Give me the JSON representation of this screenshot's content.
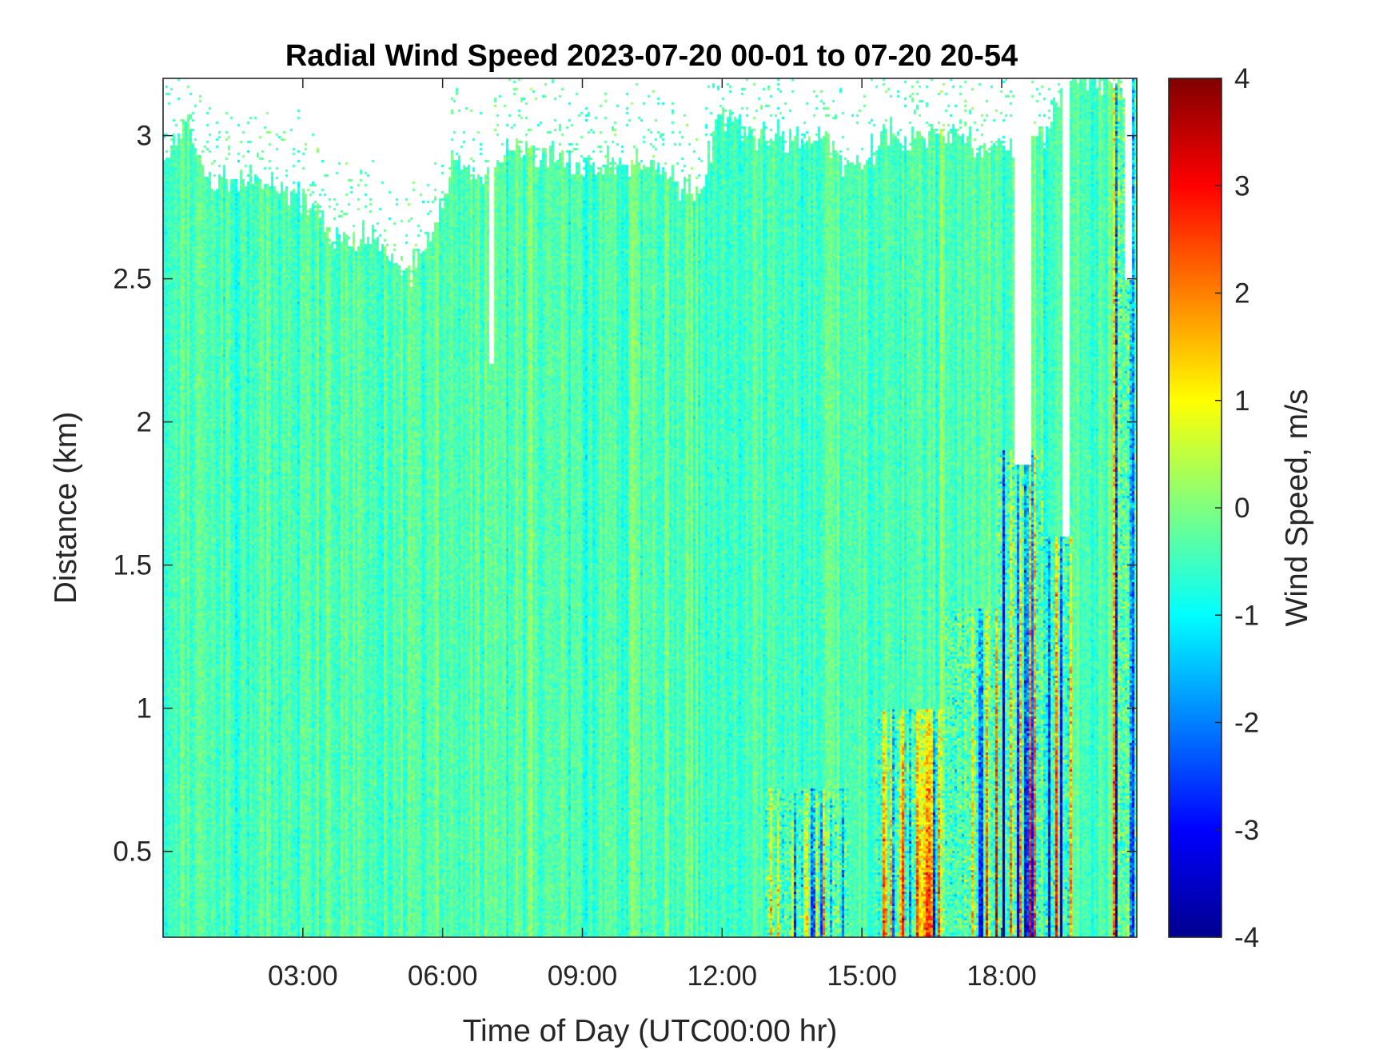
{
  "chart_data": {
    "type": "heatmap",
    "title": "Radial Wind Speed 2023-07-20 00-01 to 07-20 20-54",
    "xlabel": "Time of Day (UTC00:00 hr)",
    "ylabel": "Distance (km)",
    "xlim": [
      0.0,
      20.9
    ],
    "ylim": [
      0.2,
      3.2
    ],
    "x_ticks": [
      3,
      6,
      9,
      12,
      15,
      18
    ],
    "x_tick_labels": [
      "03:00",
      "06:00",
      "09:00",
      "12:00",
      "15:00",
      "18:00"
    ],
    "y_ticks": [
      0.5,
      1,
      1.5,
      2,
      2.5,
      3
    ],
    "y_tick_labels": [
      "0.5",
      "1",
      "1.5",
      "2",
      "2.5",
      "3"
    ],
    "colorbar": {
      "label": "Wind Speed, m/s",
      "colormap": "jet",
      "clim": [
        -4,
        4
      ],
      "ticks": [
        -4,
        -3,
        -2,
        -1,
        0,
        1,
        2,
        3,
        4
      ],
      "tick_labels": [
        "-4",
        "-3",
        "-2",
        "-1",
        "0",
        "1",
        "2",
        "3",
        "4"
      ]
    },
    "grid": false,
    "background_trend_m_s": -0.4,
    "data_ceiling_km": [
      {
        "x": 0.0,
        "y": 2.9
      },
      {
        "x": 0.5,
        "y": 3.05
      },
      {
        "x": 1.0,
        "y": 2.85
      },
      {
        "x": 2.0,
        "y": 2.85
      },
      {
        "x": 3.0,
        "y": 2.8
      },
      {
        "x": 3.6,
        "y": 2.65
      },
      {
        "x": 4.5,
        "y": 2.65
      },
      {
        "x": 5.3,
        "y": 2.5
      },
      {
        "x": 5.8,
        "y": 2.65
      },
      {
        "x": 6.2,
        "y": 2.9
      },
      {
        "x": 6.8,
        "y": 2.85
      },
      {
        "x": 7.5,
        "y": 2.95
      },
      {
        "x": 9.0,
        "y": 2.9
      },
      {
        "x": 10.5,
        "y": 2.9
      },
      {
        "x": 11.5,
        "y": 2.8
      },
      {
        "x": 12.0,
        "y": 3.1
      },
      {
        "x": 12.6,
        "y": 3.0
      },
      {
        "x": 14.0,
        "y": 3.0
      },
      {
        "x": 14.7,
        "y": 2.9
      },
      {
        "x": 15.6,
        "y": 3.0
      },
      {
        "x": 17.0,
        "y": 3.0
      },
      {
        "x": 18.0,
        "y": 2.95
      },
      {
        "x": 18.7,
        "y": 2.95
      },
      {
        "x": 19.5,
        "y": 3.2
      },
      {
        "x": 20.9,
        "y": 3.2
      }
    ],
    "gaps": [
      {
        "x_start": 7.0,
        "x_end": 7.1,
        "y_from": 2.2
      },
      {
        "x_start": 18.25,
        "x_end": 18.65,
        "y_from": 1.85
      },
      {
        "x_start": 19.3,
        "x_end": 19.45,
        "y_from": 1.6
      },
      {
        "x_start": 20.65,
        "x_end": 20.8,
        "y_from": 2.5
      }
    ],
    "turbulent_episodes": [
      {
        "x_start": 12.9,
        "x_end": 14.7,
        "top_km": 0.72,
        "amplitude_m_s": 2.8
      },
      {
        "x_start": 15.3,
        "x_end": 16.8,
        "top_km": 1.0,
        "amplitude_m_s": 3.2
      },
      {
        "x_start": 16.8,
        "x_end": 17.9,
        "top_km": 1.35,
        "amplitude_m_s": 3.6
      },
      {
        "x_start": 17.9,
        "x_end": 18.9,
        "top_km": 1.9,
        "amplitude_m_s": 4.0
      },
      {
        "x_start": 18.9,
        "x_end": 19.5,
        "top_km": 1.6,
        "amplitude_m_s": 4.0
      },
      {
        "x_start": 20.4,
        "x_end": 20.9,
        "top_km": 3.2,
        "amplitude_m_s": 3.5
      }
    ]
  }
}
